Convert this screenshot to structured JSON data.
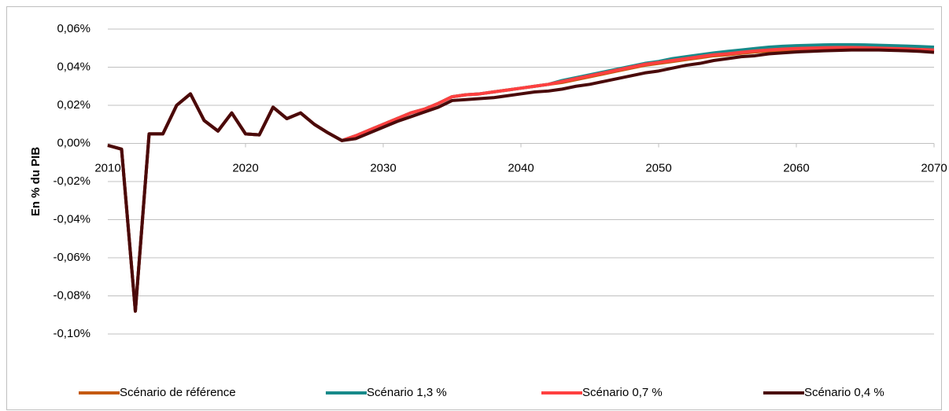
{
  "chart_data": {
    "type": "line",
    "y_axis_label": "En % du PIB",
    "x": [
      2010,
      2011,
      2012,
      2013,
      2014,
      2015,
      2016,
      2017,
      2018,
      2019,
      2020,
      2021,
      2022,
      2023,
      2024,
      2025,
      2026,
      2027,
      2028,
      2029,
      2030,
      2031,
      2032,
      2033,
      2034,
      2035,
      2036,
      2037,
      2038,
      2039,
      2040,
      2041,
      2042,
      2043,
      2044,
      2045,
      2046,
      2047,
      2048,
      2049,
      2050,
      2051,
      2052,
      2053,
      2054,
      2055,
      2056,
      2057,
      2058,
      2059,
      2060,
      2061,
      2062,
      2063,
      2064,
      2065,
      2066,
      2067,
      2068,
      2069,
      2070
    ],
    "xlim": [
      2010,
      2070
    ],
    "xticks": [
      2010,
      2020,
      2030,
      2040,
      2050,
      2060,
      2070
    ],
    "ylim": [
      -0.1,
      0.06
    ],
    "yticks": [
      {
        "value": -0.1,
        "label": "-0,10%"
      },
      {
        "value": -0.08,
        "label": "-0,08%"
      },
      {
        "value": -0.06,
        "label": "-0,06%"
      },
      {
        "value": -0.04,
        "label": "-0,04%"
      },
      {
        "value": -0.02,
        "label": "-0,02%"
      },
      {
        "value": 0,
        "label": "0,00%"
      },
      {
        "value": 0.02,
        "label": "0,02%"
      },
      {
        "value": 0.04,
        "label": "0,04%"
      },
      {
        "value": 0.06,
        "label": "0,06%"
      }
    ],
    "grid": true,
    "legend": "bottom",
    "series": [
      {
        "name": "Scénario de référence",
        "color": "#c55a11",
        "values": [
          -0.001,
          -0.003,
          -0.088,
          0.005,
          0.005,
          0.02,
          0.026,
          0.012,
          0.0065,
          0.016,
          0.005,
          0.0045,
          0.019,
          0.013,
          0.016,
          0.01,
          0.0055,
          0.0015,
          0.004,
          0.007,
          0.01,
          0.013,
          0.016,
          0.018,
          0.021,
          0.0245,
          0.0255,
          0.026,
          0.027,
          0.028,
          0.029,
          0.03,
          0.031,
          0.032,
          0.0335,
          0.035,
          0.0365,
          0.038,
          0.0395,
          0.041,
          0.042,
          0.043,
          0.044,
          0.045,
          0.046,
          0.0465,
          0.0473,
          0.048,
          0.0485,
          0.049,
          0.0493,
          0.0495,
          0.0497,
          0.0498,
          0.0498,
          0.0497,
          0.0495,
          0.0493,
          0.0491,
          0.0488,
          0.0485
        ]
      },
      {
        "name": "Scénario 1,3 %",
        "color": "#178a8a",
        "values": [
          -0.001,
          -0.003,
          -0.088,
          0.005,
          0.005,
          0.02,
          0.026,
          0.012,
          0.0065,
          0.016,
          0.005,
          0.0045,
          0.019,
          0.013,
          0.016,
          0.01,
          0.0055,
          0.0015,
          0.004,
          0.007,
          0.01,
          0.013,
          0.016,
          0.018,
          0.021,
          0.0245,
          0.0255,
          0.026,
          0.027,
          0.028,
          0.029,
          0.03,
          0.031,
          0.033,
          0.0345,
          0.036,
          0.0375,
          0.039,
          0.0405,
          0.042,
          0.043,
          0.0445,
          0.0455,
          0.0465,
          0.0475,
          0.0483,
          0.049,
          0.0498,
          0.0505,
          0.051,
          0.0513,
          0.0515,
          0.0517,
          0.0518,
          0.0518,
          0.0517,
          0.0515,
          0.0513,
          0.0511,
          0.0508,
          0.0505
        ]
      },
      {
        "name": "Scénario 0,7 %",
        "color": "#ff4040",
        "values": [
          -0.001,
          -0.003,
          -0.088,
          0.005,
          0.005,
          0.02,
          0.026,
          0.012,
          0.0065,
          0.016,
          0.005,
          0.0045,
          0.019,
          0.013,
          0.016,
          0.01,
          0.0055,
          0.0015,
          0.004,
          0.007,
          0.01,
          0.013,
          0.016,
          0.018,
          0.021,
          0.0245,
          0.0255,
          0.026,
          0.027,
          0.028,
          0.029,
          0.03,
          0.031,
          0.0325,
          0.034,
          0.0355,
          0.037,
          0.0385,
          0.04,
          0.0415,
          0.0425,
          0.0435,
          0.0445,
          0.0455,
          0.0465,
          0.047,
          0.0478,
          0.0485,
          0.049,
          0.0495,
          0.0498,
          0.05,
          0.0502,
          0.0503,
          0.0503,
          0.0502,
          0.05,
          0.0498,
          0.0496,
          0.0493,
          0.049
        ]
      },
      {
        "name": "Scénario 0,4 %",
        "color": "#4a0a0a",
        "values": [
          -0.001,
          -0.003,
          -0.088,
          0.005,
          0.005,
          0.02,
          0.026,
          0.012,
          0.0065,
          0.016,
          0.005,
          0.0045,
          0.019,
          0.013,
          0.016,
          0.01,
          0.0055,
          0.0015,
          0.0025,
          0.0055,
          0.0085,
          0.0115,
          0.014,
          0.0165,
          0.019,
          0.0225,
          0.023,
          0.0235,
          0.024,
          0.025,
          0.026,
          0.027,
          0.0275,
          0.0285,
          0.03,
          0.031,
          0.0325,
          0.034,
          0.0355,
          0.037,
          0.038,
          0.0395,
          0.041,
          0.042,
          0.0435,
          0.0445,
          0.0455,
          0.046,
          0.047,
          0.0475,
          0.048,
          0.0483,
          0.0486,
          0.0488,
          0.049,
          0.049,
          0.049,
          0.0488,
          0.0486,
          0.0483,
          0.0478
        ]
      }
    ]
  }
}
